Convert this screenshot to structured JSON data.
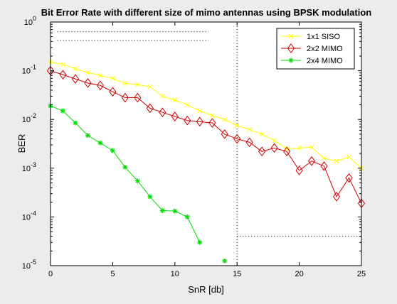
{
  "chart_data": {
    "type": "line",
    "title": "Bit Error Rate with different size of mimo antennas using BPSK modulation",
    "xlabel": "SnR [db]",
    "ylabel": "BER",
    "xlim": [
      0,
      25
    ],
    "ylim": [
      1e-05,
      1
    ],
    "yscale": "log",
    "grid": false,
    "legend_position": "top-right",
    "xticks": [
      0,
      5,
      10,
      15,
      20,
      25
    ],
    "yticks": [
      {
        "base": "10",
        "exp": "0",
        "value": 1
      },
      {
        "base": "10",
        "exp": "-1",
        "value": 0.1
      },
      {
        "base": "10",
        "exp": "-2",
        "value": 0.01
      },
      {
        "base": "10",
        "exp": "-3",
        "value": 0.001
      },
      {
        "base": "10",
        "exp": "-4",
        "value": 0.0001
      },
      {
        "base": "10",
        "exp": "-5",
        "value": 1e-05
      }
    ],
    "series": [
      {
        "name": "1x1 SISO",
        "color": "#ffff00",
        "marker": "x",
        "x": [
          0,
          1,
          2,
          3,
          4,
          5,
          6,
          7,
          8,
          9,
          10,
          11,
          12,
          13,
          14,
          15,
          16,
          17,
          18,
          19,
          20,
          21,
          22,
          23,
          24,
          25
        ],
        "values": [
          0.15,
          0.135,
          0.11,
          0.092,
          0.08,
          0.07,
          0.055,
          0.052,
          0.047,
          0.03,
          0.025,
          0.02,
          0.015,
          0.012,
          0.01,
          0.0075,
          0.0062,
          0.005,
          0.0037,
          0.0025,
          0.0026,
          0.0027,
          0.0016,
          0.0014,
          0.0017,
          0.001
        ]
      },
      {
        "name": "2x2 MIMO",
        "color": "#cc0000",
        "marker": "diamond",
        "x": [
          0,
          1,
          2,
          3,
          4,
          5,
          6,
          7,
          8,
          9,
          10,
          11,
          12,
          13,
          14,
          15,
          16,
          17,
          18,
          19,
          20,
          21,
          22,
          23,
          24,
          25
        ],
        "values": [
          0.1,
          0.083,
          0.068,
          0.056,
          0.05,
          0.037,
          0.028,
          0.028,
          0.017,
          0.014,
          0.0115,
          0.0095,
          0.009,
          0.0085,
          0.005,
          0.004,
          0.0034,
          0.0022,
          0.0026,
          0.0022,
          0.0009,
          0.0014,
          0.0011,
          0.00026,
          0.00063,
          0.00019
        ]
      },
      {
        "name": "2x4 MIMO",
        "color": "#00dd00",
        "marker": "asterisk",
        "x": [
          0,
          1,
          2,
          3,
          4,
          5,
          6,
          7,
          8,
          9,
          10,
          11,
          12,
          14
        ],
        "values": [
          0.019,
          0.015,
          0.0085,
          0.0047,
          0.0033,
          0.0023,
          0.00105,
          0.00055,
          0.00026,
          0.000135,
          0.000132,
          0.0001,
          3e-05,
          1.25e-05
        ],
        "segments": [
          [
            0,
            12
          ],
          [
            13,
            13
          ]
        ]
      }
    ],
    "guide_lines": [
      {
        "orientation": "horizontal",
        "y": 0.63,
        "x_from": 0.55,
        "x_to": 12.7
      },
      {
        "orientation": "horizontal",
        "y": 0.42,
        "x_from": 0.55,
        "x_to": 12.7
      },
      {
        "orientation": "vertical",
        "x": 15,
        "y_from": 1e-05,
        "y_to": 1
      },
      {
        "orientation": "horizontal",
        "y": 4e-05,
        "x_from": 15,
        "x_to": 25
      }
    ]
  }
}
